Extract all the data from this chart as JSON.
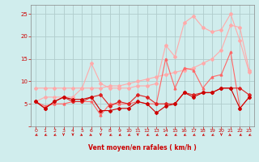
{
  "x": [
    0,
    1,
    2,
    3,
    4,
    5,
    6,
    7,
    8,
    9,
    10,
    11,
    12,
    13,
    14,
    15,
    16,
    17,
    18,
    19,
    20,
    21,
    22,
    23
  ],
  "series": [
    {
      "color": "#ffaaaa",
      "marker": "D",
      "markersize": 2,
      "linewidth": 0.8,
      "y": [
        8.5,
        8.5,
        8.5,
        8.5,
        8.5,
        8.5,
        8.5,
        8.5,
        9.0,
        9.0,
        9.5,
        10.0,
        10.5,
        11.0,
        11.5,
        12.0,
        12.5,
        13.0,
        14.0,
        15.0,
        17.0,
        22.5,
        22.0,
        12.5
      ]
    },
    {
      "color": "#ffaaaa",
      "marker": "D",
      "markersize": 2,
      "linewidth": 0.8,
      "y": [
        5.5,
        6.5,
        6.5,
        6.5,
        6.5,
        8.5,
        14.0,
        9.5,
        8.5,
        8.5,
        8.5,
        9.0,
        9.0,
        9.5,
        18.0,
        15.5,
        23.0,
        24.5,
        22.0,
        21.0,
        21.5,
        25.0,
        19.0,
        12.0
      ]
    },
    {
      "color": "#ff6666",
      "marker": "^",
      "markersize": 2,
      "linewidth": 0.8,
      "y": [
        5.5,
        4.5,
        5.0,
        5.0,
        5.5,
        5.5,
        5.5,
        2.5,
        5.0,
        5.0,
        5.0,
        5.5,
        5.0,
        5.0,
        15.0,
        8.5,
        13.0,
        12.5,
        8.5,
        11.0,
        11.5,
        16.5,
        4.0,
        6.5
      ]
    },
    {
      "color": "#dd2222",
      "marker": "D",
      "markersize": 2,
      "linewidth": 0.8,
      "y": [
        5.5,
        4.0,
        5.5,
        6.5,
        5.5,
        5.5,
        6.5,
        7.0,
        4.5,
        5.5,
        5.0,
        7.0,
        6.5,
        5.0,
        5.0,
        5.0,
        7.5,
        7.0,
        7.5,
        7.5,
        8.5,
        8.5,
        8.5,
        7.0
      ]
    },
    {
      "color": "#cc0000",
      "marker": "D",
      "markersize": 2,
      "linewidth": 0.8,
      "y": [
        5.5,
        4.0,
        5.5,
        6.5,
        6.0,
        6.0,
        6.5,
        3.5,
        3.5,
        4.0,
        4.0,
        5.5,
        5.0,
        3.0,
        4.5,
        5.0,
        7.5,
        6.5,
        7.5,
        7.5,
        8.5,
        8.5,
        4.0,
        6.5
      ]
    }
  ],
  "xlabel": "Vent moyen/en rafales ( km/h )",
  "ylim": [
    0,
    27
  ],
  "xlim": [
    -0.5,
    23.5
  ],
  "yticks": [
    0,
    5,
    10,
    15,
    20,
    25
  ],
  "xticks": [
    0,
    1,
    2,
    3,
    4,
    5,
    6,
    7,
    8,
    9,
    10,
    11,
    12,
    13,
    14,
    15,
    16,
    17,
    18,
    19,
    20,
    21,
    22,
    23
  ],
  "bg_color": "#d0eded",
  "grid_color": "#b0cccc",
  "tick_color": "#cc0000",
  "label_color": "#cc0000"
}
